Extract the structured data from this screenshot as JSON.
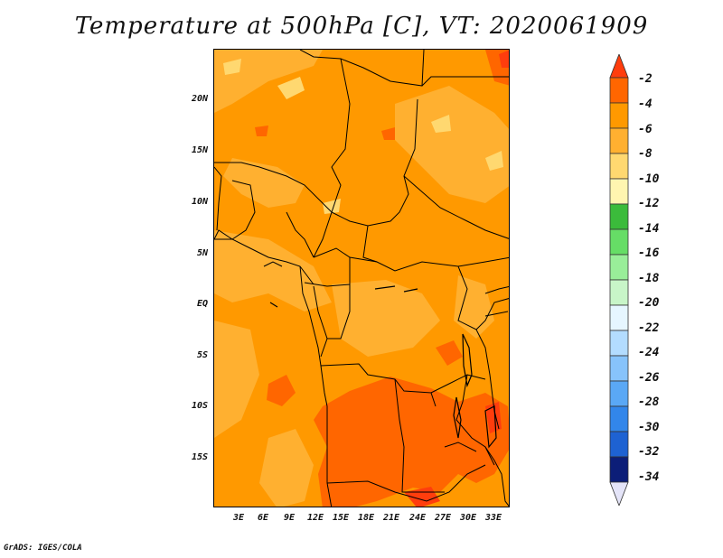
{
  "title": "Temperature at 500hPa [C], VT: 2020061909",
  "credit": "GrADS: IGES/COLA",
  "y_axis_labels": [
    "20N",
    "15N",
    "10N",
    "5N",
    "EQ",
    "5S",
    "10S",
    "15S"
  ],
  "x_axis_labels": [
    "3E",
    "6E",
    "9E",
    "12E",
    "15E",
    "18E",
    "21E",
    "24E",
    "27E",
    "30E",
    "33E"
  ],
  "colorbar": {
    "labels": [
      "-2",
      "-4",
      "-6",
      "-8",
      "-10",
      "-12",
      "-14",
      "-16",
      "-18",
      "-20",
      "-22",
      "-24",
      "-26",
      "-28",
      "-30",
      "-32",
      "-34"
    ],
    "colors": [
      "#ff3d0d",
      "#ff6600",
      "#ff9900",
      "#ffb030",
      "#ffd870",
      "#fff5b0",
      "#3bbb3b",
      "#66dd66",
      "#99ee99",
      "#c8f5c8",
      "#e6f6ff",
      "#b3dcff",
      "#87c3fb",
      "#5aa8f5",
      "#3286ea",
      "#1e62d2",
      "#1442b0",
      "#0c1e78"
    ]
  },
  "map_colors": {
    "base": "#ff9900",
    "lighter": "#ffb030",
    "lightest": "#ffd870",
    "warm": "#ff6600",
    "warmest": "#ff3d0d",
    "border": "#000000"
  }
}
